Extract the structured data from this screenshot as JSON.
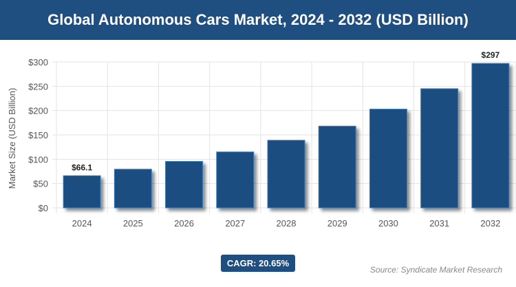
{
  "chart_data": {
    "type": "bar",
    "title": "Global Autonomous Cars Market, 2024 - 2032 (USD Billion)",
    "ylabel": "Market Size (USD Billion)",
    "xlabel": "",
    "categories": [
      "2024",
      "2025",
      "2026",
      "2027",
      "2028",
      "2029",
      "2030",
      "2031",
      "2032"
    ],
    "values": [
      66.1,
      79.5,
      95.5,
      115,
      139,
      168,
      203,
      245,
      297
    ],
    "data_labels": {
      "0": "$66.1",
      "8": "$297"
    },
    "ylim": [
      0,
      300
    ],
    "yticks": [
      0,
      50,
      100,
      150,
      200,
      250,
      300
    ],
    "ytick_labels": [
      "$0",
      "$50",
      "$100",
      "$150",
      "$200",
      "$250",
      "$300"
    ],
    "grid": true,
    "bar_color": "#1f4e80"
  },
  "cagr": "CAGR: 20.65%",
  "source": "Source: Syndicate Market Research"
}
